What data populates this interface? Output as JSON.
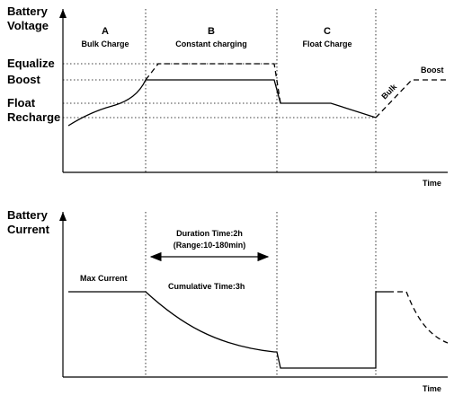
{
  "top_chart": {
    "ylabel_line1": "Battery",
    "ylabel_line2": "Voltage",
    "xlabel": "Time",
    "levels": {
      "equalize": "Equalize",
      "boost": "Boost",
      "float": "Float",
      "recharge": "Recharge"
    },
    "phases": {
      "a_letter": "A",
      "a_name": "Bulk Charge",
      "b_letter": "B",
      "b_name": "Constant charging",
      "c_letter": "C",
      "c_name": "Float Charge"
    },
    "bulk_annotation": "Bulk",
    "boost_annotation": "Boost"
  },
  "bottom_chart": {
    "ylabel_line1": "Battery",
    "ylabel_line2": "Current",
    "xlabel": "Time",
    "max_current": "Max Current",
    "duration_line1": "Duration Time:2h",
    "duration_line2": "(Range:10-180min)",
    "cumulative": "Cumulative Time:3h"
  },
  "colors": {
    "ink": "#000000",
    "background": "#ffffff"
  }
}
